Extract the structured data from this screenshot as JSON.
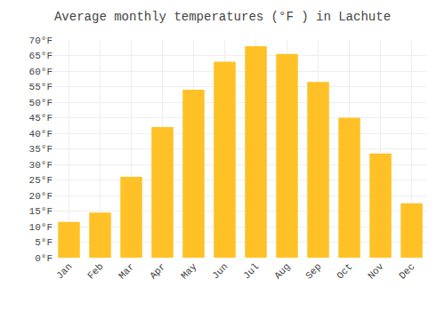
{
  "chart_data": {
    "type": "bar",
    "title": "Average monthly temperatures (°F ) in Lachute",
    "categories": [
      "Jan",
      "Feb",
      "Mar",
      "Apr",
      "May",
      "Jun",
      "Jul",
      "Aug",
      "Sep",
      "Oct",
      "Nov",
      "Dec"
    ],
    "values": [
      11.5,
      14.5,
      26,
      42,
      54,
      63,
      68,
      65.5,
      56.5,
      45,
      33.5,
      17.5
    ],
    "color": "#FFC125",
    "ylim": [
      0,
      70
    ],
    "yticks": [
      {
        "value": 0,
        "label": "0°F"
      },
      {
        "value": 5,
        "label": "5°F"
      },
      {
        "value": 10,
        "label": "10°F"
      },
      {
        "value": 15,
        "label": "15°F"
      },
      {
        "value": 20,
        "label": "20°F"
      },
      {
        "value": 25,
        "label": "25°F"
      },
      {
        "value": 30,
        "label": "30°F"
      },
      {
        "value": 35,
        "label": "35°F"
      },
      {
        "value": 40,
        "label": "40°F"
      },
      {
        "value": 45,
        "label": "45°F"
      },
      {
        "value": 50,
        "label": "50°F"
      },
      {
        "value": 55,
        "label": "55°F"
      },
      {
        "value": 60,
        "label": "60°F"
      },
      {
        "value": 65,
        "label": "65°F"
      },
      {
        "value": 70,
        "label": "70°F"
      }
    ],
    "grid": true
  }
}
